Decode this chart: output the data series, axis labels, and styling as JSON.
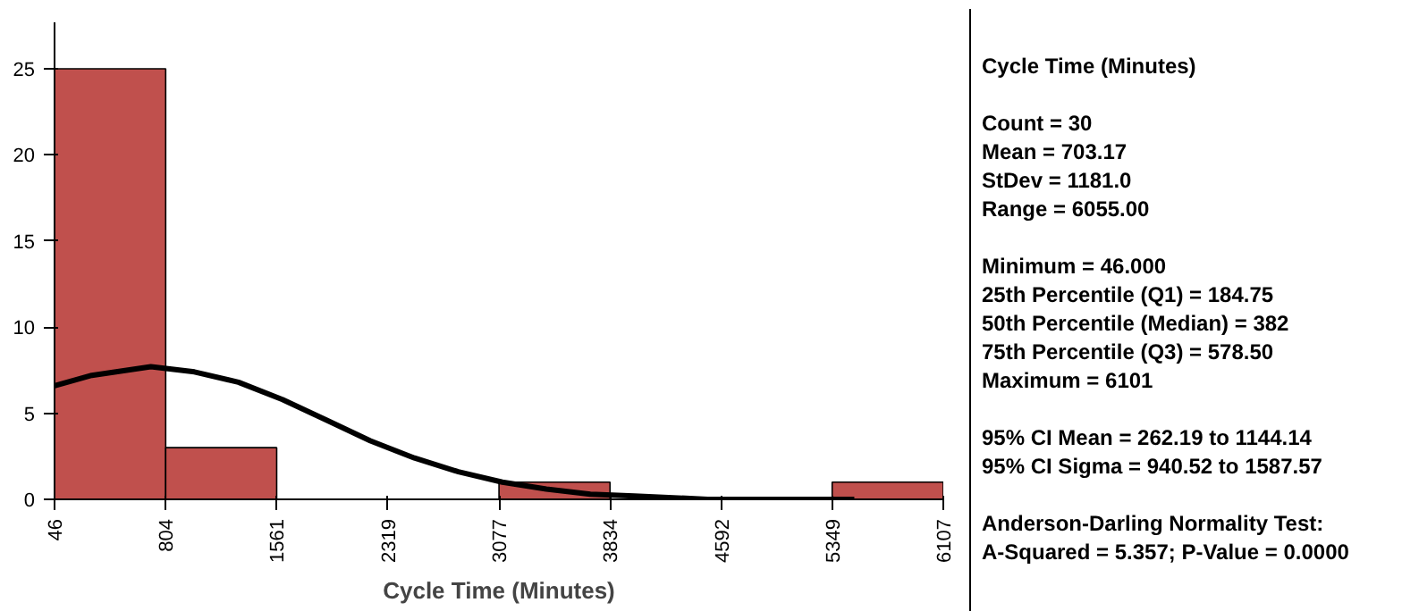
{
  "chart_data": {
    "type": "histogram",
    "title": "Cycle Time (Minutes)",
    "xlabel": "Cycle Time (Minutes)",
    "bins": [
      46,
      804,
      1561,
      2319,
      3077,
      3834,
      4592,
      5349,
      6107
    ],
    "values": [
      25,
      3,
      0,
      0,
      1,
      0,
      0,
      1
    ],
    "color": "#c0504d",
    "xlim": [
      46,
      6107
    ],
    "xticks": [
      46,
      804,
      1561,
      2319,
      3077,
      3834,
      4592,
      5349,
      6107
    ],
    "ylim": [
      0,
      27.7
    ],
    "yticks": [
      0,
      5,
      10,
      15,
      20,
      25
    ],
    "grid": false,
    "series": [
      {
        "type": "line",
        "color": "#000000",
        "x": [
          46,
          300,
          703,
          1000,
          1300,
          1600,
          1900,
          2200,
          2500,
          2800,
          3100,
          3400,
          3700,
          4000,
          4500,
          5000,
          5500
        ],
        "values": [
          6.6,
          7.2,
          7.7,
          7.4,
          6.8,
          5.8,
          4.6,
          3.4,
          2.4,
          1.6,
          1.0,
          0.6,
          0.3,
          0.2,
          0.0,
          0.0,
          0.0
        ]
      }
    ],
    "annotations": [
      "Count = 30\nMean = 703.17\nStDev = 1181.0\nRange = 6055.00",
      "Minimum = 46.000\n25th Percentile (Q1) = 184.75\n50th Percentile (Median) = 382\n75th Percentile (Q3) = 578.50\nMaximum = 6101",
      "95% CI Mean = 262.19 to 1144.14\n95% CI Sigma = 940.52 to 1587.57",
      "Anderson-Darling Normality Test:\nA-Squared = 5.357; P-Value = 0.0000"
    ]
  }
}
